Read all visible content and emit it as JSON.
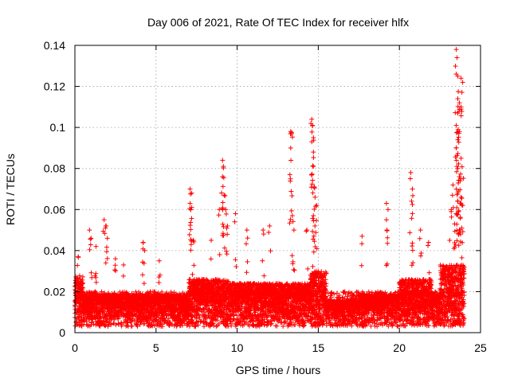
{
  "chart_data": {
    "type": "scatter",
    "title": "Day 006 of 2021, Rate Of TEC Index for receiver hlfx",
    "xlabel": "GPS time / hours",
    "ylabel": "ROTI / TECUs",
    "xlim": [
      0,
      25
    ],
    "ylim": [
      0,
      0.14
    ],
    "x_ticks": [
      0,
      5,
      10,
      15,
      20,
      25
    ],
    "x_tick_labels": [
      "0",
      "5",
      "10",
      "15",
      "20",
      "25"
    ],
    "y_ticks": [
      0,
      0.02,
      0.04,
      0.06,
      0.08,
      0.1,
      0.12,
      0.14
    ],
    "y_tick_labels": [
      "0",
      "0.02",
      "0.04",
      "0.06",
      "0.08",
      "0.1",
      "0.12",
      "0.14"
    ],
    "grid": true,
    "marker": "plus",
    "marker_color": "#ff0000",
    "series": [
      {
        "name": "ROTI",
        "data_extent": {
          "x_min": 0,
          "x_max": 24
        },
        "baseline_band": {
          "low": 0.003,
          "high": 0.02
        },
        "notable_points": [
          {
            "x": 0.2,
            "y": 0.037
          },
          {
            "x": 0.9,
            "y": 0.05
          },
          {
            "x": 1.0,
            "y": 0.046
          },
          {
            "x": 1.3,
            "y": 0.042
          },
          {
            "x": 1.8,
            "y": 0.055
          },
          {
            "x": 1.9,
            "y": 0.052
          },
          {
            "x": 2.0,
            "y": 0.046
          },
          {
            "x": 2.5,
            "y": 0.036
          },
          {
            "x": 3.0,
            "y": 0.033
          },
          {
            "x": 4.2,
            "y": 0.044
          },
          {
            "x": 4.3,
            "y": 0.04
          },
          {
            "x": 5.2,
            "y": 0.035
          },
          {
            "x": 7.1,
            "y": 0.07
          },
          {
            "x": 7.2,
            "y": 0.068
          },
          {
            "x": 7.1,
            "y": 0.063
          },
          {
            "x": 7.2,
            "y": 0.061
          },
          {
            "x": 7.3,
            "y": 0.045
          },
          {
            "x": 8.4,
            "y": 0.045
          },
          {
            "x": 8.9,
            "y": 0.06
          },
          {
            "x": 9.1,
            "y": 0.084
          },
          {
            "x": 9.15,
            "y": 0.081
          },
          {
            "x": 9.1,
            "y": 0.076
          },
          {
            "x": 9.2,
            "y": 0.067
          },
          {
            "x": 9.3,
            "y": 0.06
          },
          {
            "x": 9.4,
            "y": 0.052
          },
          {
            "x": 9.9,
            "y": 0.058
          },
          {
            "x": 10.6,
            "y": 0.05
          },
          {
            "x": 11.6,
            "y": 0.05
          },
          {
            "x": 12.0,
            "y": 0.052
          },
          {
            "x": 13.3,
            "y": 0.098
          },
          {
            "x": 13.35,
            "y": 0.097
          },
          {
            "x": 13.3,
            "y": 0.09
          },
          {
            "x": 13.25,
            "y": 0.077
          },
          {
            "x": 13.4,
            "y": 0.057
          },
          {
            "x": 13.5,
            "y": 0.05
          },
          {
            "x": 14.6,
            "y": 0.104
          },
          {
            "x": 14.65,
            "y": 0.101
          },
          {
            "x": 14.7,
            "y": 0.095
          },
          {
            "x": 14.6,
            "y": 0.093
          },
          {
            "x": 14.7,
            "y": 0.088
          },
          {
            "x": 14.6,
            "y": 0.077
          },
          {
            "x": 14.75,
            "y": 0.071
          },
          {
            "x": 14.8,
            "y": 0.066
          },
          {
            "x": 14.9,
            "y": 0.062
          },
          {
            "x": 14.7,
            "y": 0.057
          },
          {
            "x": 14.3,
            "y": 0.05
          },
          {
            "x": 17.7,
            "y": 0.047
          },
          {
            "x": 19.2,
            "y": 0.063
          },
          {
            "x": 19.3,
            "y": 0.06
          },
          {
            "x": 19.2,
            "y": 0.055
          },
          {
            "x": 20.7,
            "y": 0.078
          },
          {
            "x": 20.8,
            "y": 0.07
          },
          {
            "x": 20.8,
            "y": 0.058
          },
          {
            "x": 21.3,
            "y": 0.05
          },
          {
            "x": 21.8,
            "y": 0.044
          },
          {
            "x": 23.5,
            "y": 0.138
          },
          {
            "x": 23.55,
            "y": 0.134
          },
          {
            "x": 23.5,
            "y": 0.126
          },
          {
            "x": 23.6,
            "y": 0.125
          },
          {
            "x": 23.8,
            "y": 0.124
          },
          {
            "x": 23.9,
            "y": 0.122
          },
          {
            "x": 23.6,
            "y": 0.114
          },
          {
            "x": 23.7,
            "y": 0.112
          },
          {
            "x": 23.8,
            "y": 0.11
          },
          {
            "x": 23.6,
            "y": 0.107
          },
          {
            "x": 23.5,
            "y": 0.101
          },
          {
            "x": 23.7,
            "y": 0.098
          },
          {
            "x": 23.6,
            "y": 0.094
          },
          {
            "x": 23.5,
            "y": 0.09
          },
          {
            "x": 23.8,
            "y": 0.085
          },
          {
            "x": 23.6,
            "y": 0.08
          },
          {
            "x": 23.7,
            "y": 0.076
          },
          {
            "x": 23.3,
            "y": 0.072
          },
          {
            "x": 23.6,
            "y": 0.068
          },
          {
            "x": 23.8,
            "y": 0.066
          },
          {
            "x": 23.9,
            "y": 0.062
          },
          {
            "x": 23.2,
            "y": 0.06
          },
          {
            "x": 23.5,
            "y": 0.058
          },
          {
            "x": 23.4,
            "y": 0.053
          },
          {
            "x": 23.7,
            "y": 0.05
          },
          {
            "x": 23.1,
            "y": 0.045
          }
        ]
      }
    ]
  }
}
